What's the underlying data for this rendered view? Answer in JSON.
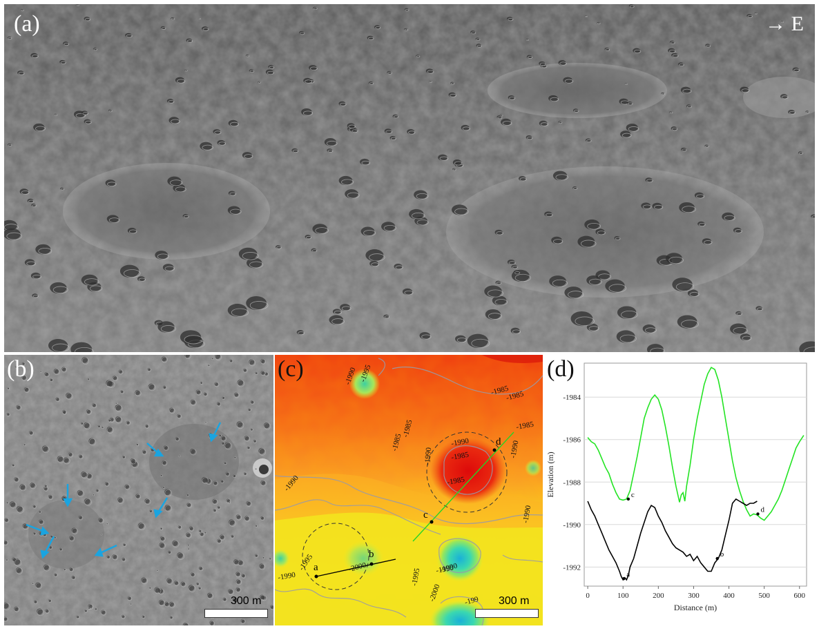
{
  "panels": {
    "a": {
      "label": "(a)",
      "direction": "→ E"
    },
    "b": {
      "label": "(b)",
      "scale": "300 m"
    },
    "c": {
      "label": "(c)",
      "scale": "300 m",
      "contours": [
        "-1990",
        "-1995",
        "-1985",
        "-1985",
        "-1985",
        "-1985",
        "-1985",
        "-1990",
        "-1990",
        "-1985",
        "-1985",
        "-1990",
        "-1990",
        "-1990",
        "-1990",
        "-1995",
        "-2000",
        "-1995",
        "-1990",
        "-1990",
        "-2000",
        "-199"
      ],
      "points": [
        "a",
        "b",
        "c",
        "d"
      ]
    },
    "d": {
      "label": "(d)"
    }
  },
  "chart_data": {
    "type": "line",
    "title": "",
    "xlabel": "Distance (m)",
    "ylabel": "Elevation (m)",
    "xlim": [
      -10,
      620
    ],
    "ylim": [
      -1992.9,
      -1982.4
    ],
    "xticks": [
      0,
      100,
      200,
      300,
      400,
      500,
      600
    ],
    "yticks": [
      -1984,
      -1986,
      -1988,
      -1990,
      -1992
    ],
    "grid": true,
    "series": [
      {
        "color": "#23e423",
        "x": [
          0,
          10,
          20,
          30,
          40,
          50,
          60,
          70,
          80,
          90,
          100,
          110,
          120,
          130,
          140,
          150,
          160,
          170,
          180,
          190,
          200,
          210,
          220,
          230,
          240,
          250,
          260,
          265,
          270,
          275,
          280,
          290,
          300,
          310,
          320,
          330,
          340,
          350,
          360,
          370,
          380,
          390,
          400,
          410,
          420,
          430,
          440,
          450,
          460,
          470,
          480,
          490,
          500,
          510,
          520,
          530,
          540,
          550,
          560,
          570,
          580,
          590,
          600,
          612
        ],
        "y": [
          -1985.9,
          -1986.1,
          -1986.2,
          -1986.5,
          -1986.9,
          -1987.3,
          -1987.6,
          -1988.1,
          -1988.5,
          -1988.8,
          -1988.85,
          -1988.8,
          -1988.4,
          -1987.6,
          -1986.8,
          -1985.9,
          -1985.0,
          -1984.5,
          -1984.1,
          -1983.9,
          -1984.1,
          -1984.6,
          -1985.4,
          -1986.3,
          -1987.3,
          -1988.2,
          -1988.95,
          -1988.6,
          -1988.5,
          -1988.9,
          -1988.2,
          -1987.2,
          -1986.0,
          -1985.0,
          -1984.2,
          -1983.4,
          -1982.9,
          -1982.6,
          -1982.7,
          -1983.2,
          -1984.0,
          -1985.0,
          -1986.0,
          -1987.0,
          -1987.8,
          -1988.4,
          -1988.9,
          -1989.3,
          -1989.6,
          -1989.5,
          -1989.55,
          -1989.7,
          -1989.8,
          -1989.6,
          -1989.4,
          -1989.1,
          -1988.8,
          -1988.4,
          -1987.9,
          -1987.4,
          -1986.9,
          -1986.4,
          -1986.1,
          -1985.8
        ]
      },
      {
        "color": "#000000",
        "x": [
          0,
          10,
          20,
          30,
          40,
          50,
          60,
          70,
          80,
          90,
          95,
          100,
          105,
          110,
          115,
          120,
          130,
          140,
          150,
          160,
          170,
          180,
          190,
          200,
          210,
          220,
          230,
          240,
          250,
          260,
          270,
          280,
          290,
          300,
          310,
          320,
          330,
          340,
          350,
          360,
          370,
          380,
          390,
          400,
          410,
          420,
          430,
          440,
          450,
          460,
          470,
          480
        ],
        "y": [
          -1988.9,
          -1989.3,
          -1989.6,
          -1990.0,
          -1990.4,
          -1990.8,
          -1991.2,
          -1991.5,
          -1991.8,
          -1992.2,
          -1992.45,
          -1992.6,
          -1992.5,
          -1992.6,
          -1992.4,
          -1992.0,
          -1991.6,
          -1991.0,
          -1990.4,
          -1989.9,
          -1989.4,
          -1989.1,
          -1989.2,
          -1989.6,
          -1989.9,
          -1990.3,
          -1990.6,
          -1990.9,
          -1991.1,
          -1991.2,
          -1991.3,
          -1991.5,
          -1991.4,
          -1991.7,
          -1991.5,
          -1991.8,
          -1992.0,
          -1992.2,
          -1992.2,
          -1991.8,
          -1991.6,
          -1991.2,
          -1990.5,
          -1989.8,
          -1989.0,
          -1988.8,
          -1988.9,
          -1989.0,
          -1989.1,
          -1989.0,
          -1989.0,
          -1988.9
        ]
      }
    ],
    "point_labels": [
      {
        "text": "a",
        "x": 102,
        "y": -1992.55
      },
      {
        "text": "b",
        "x": 367,
        "y": -1991.6
      },
      {
        "text": "c",
        "x": 115,
        "y": -1988.8
      },
      {
        "text": "d",
        "x": 482,
        "y": -1989.5
      }
    ]
  }
}
